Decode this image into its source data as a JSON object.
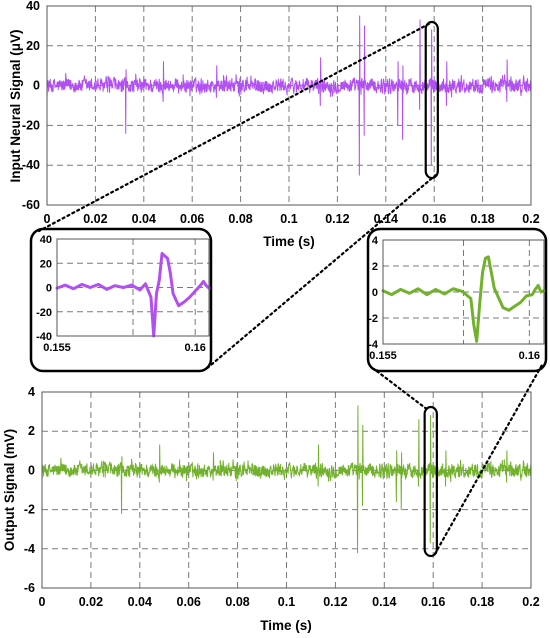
{
  "colors": {
    "input": "#b14ff2",
    "output": "#71b12b"
  },
  "chart_data": [
    {
      "id": "input",
      "type": "line",
      "title": "",
      "xlabel": "Time (s)",
      "ylabel": "Input Neural Signal (μV)",
      "xlim": [
        0,
        0.2
      ],
      "ylim": [
        -60,
        40
      ],
      "xticks": [
        "0",
        "0.02",
        "0.04",
        "0.06",
        "0.08",
        "0.1",
        "0.12",
        "0.14",
        "0.16",
        "0.18",
        "0.2"
      ],
      "yticks": [
        "40",
        "20",
        "0",
        "-20",
        "-40",
        "-60"
      ],
      "grid": true,
      "noise_amplitude": 6,
      "spikes": [
        {
          "t": 0.0326,
          "peak": 8,
          "trough": -24
        },
        {
          "t": 0.048,
          "peak": 12,
          "trough": -8
        },
        {
          "t": 0.07,
          "peak": 10,
          "trough": -6
        },
        {
          "t": 0.113,
          "peak": 14,
          "trough": -10
        },
        {
          "t": 0.129,
          "peak": 35,
          "trough": -45
        },
        {
          "t": 0.131,
          "peak": 30,
          "trough": -25
        },
        {
          "t": 0.145,
          "peak": 12,
          "trough": -20
        },
        {
          "t": 0.147,
          "peak": 10,
          "trough": -27
        },
        {
          "t": 0.154,
          "peak": 33,
          "trough": -12
        },
        {
          "t": 0.1588,
          "peak": 28,
          "trough": -40
        },
        {
          "t": 0.165,
          "peak": 12,
          "trough": -10
        },
        {
          "t": 0.19,
          "peak": 13,
          "trough": -8
        }
      ]
    },
    {
      "id": "input-zoom",
      "type": "line",
      "xlim": [
        0.155,
        0.1605
      ],
      "ylim": [
        -40,
        40
      ],
      "xticks": [
        "0.155",
        "0.16"
      ],
      "yticks": [
        "40",
        "20",
        "0",
        "-20",
        "-40"
      ],
      "grid": true,
      "points": [
        [
          0.155,
          -0.5
        ],
        [
          0.1553,
          2
        ],
        [
          0.1556,
          -1
        ],
        [
          0.1559,
          2.5
        ],
        [
          0.1562,
          0
        ],
        [
          0.1565,
          2.5
        ],
        [
          0.1568,
          -1.5
        ],
        [
          0.1571,
          1.5
        ],
        [
          0.1574,
          0
        ],
        [
          0.1577,
          2
        ],
        [
          0.158,
          -2
        ],
        [
          0.1582,
          3
        ],
        [
          0.1584,
          -8
        ],
        [
          0.1585,
          -40
        ],
        [
          0.1586,
          -5
        ],
        [
          0.1587,
          6
        ],
        [
          0.1588,
          28
        ],
        [
          0.159,
          24
        ],
        [
          0.1591,
          12
        ],
        [
          0.1592,
          -5
        ],
        [
          0.1594,
          -15
        ],
        [
          0.1596,
          -12
        ],
        [
          0.1598,
          -8
        ],
        [
          0.16,
          -3
        ],
        [
          0.1602,
          2
        ],
        [
          0.1603,
          5
        ],
        [
          0.1604,
          1.5
        ],
        [
          0.1605,
          -0.5
        ]
      ]
    },
    {
      "id": "output-zoom",
      "type": "line",
      "xlim": [
        0.155,
        0.1605
      ],
      "ylim": [
        -4,
        4
      ],
      "xticks": [
        "0.155",
        "0.16"
      ],
      "yticks": [
        "4",
        "2",
        "0",
        "-2",
        "-4"
      ],
      "grid": true,
      "points": [
        [
          0.155,
          0.1
        ],
        [
          0.1553,
          -0.2
        ],
        [
          0.1556,
          0.2
        ],
        [
          0.1559,
          -0.1
        ],
        [
          0.1562,
          0.25
        ],
        [
          0.1565,
          -0.2
        ],
        [
          0.1568,
          0.2
        ],
        [
          0.1571,
          -0.15
        ],
        [
          0.1574,
          0.25
        ],
        [
          0.1577,
          0.05
        ],
        [
          0.158,
          -0.5
        ],
        [
          0.1581,
          -2.5
        ],
        [
          0.1582,
          -3.8
        ],
        [
          0.1583,
          -1
        ],
        [
          0.1584,
          1.5
        ],
        [
          0.1585,
          2.6
        ],
        [
          0.1586,
          2.7
        ],
        [
          0.1587,
          1.5
        ],
        [
          0.1588,
          0.3
        ],
        [
          0.159,
          -0.7
        ],
        [
          0.1591,
          -1.2
        ],
        [
          0.1593,
          -1.4
        ],
        [
          0.1595,
          -1.1
        ],
        [
          0.1597,
          -0.8
        ],
        [
          0.1599,
          -0.3
        ],
        [
          0.1601,
          -0.2
        ],
        [
          0.1602,
          0.2
        ],
        [
          0.1603,
          0.5
        ],
        [
          0.1604,
          0
        ],
        [
          0.1605,
          0.1
        ]
      ]
    },
    {
      "id": "output",
      "type": "line",
      "title": "",
      "xlabel": "Time (s)",
      "ylabel": "Output Signal (mV)",
      "xlim": [
        0,
        0.2
      ],
      "ylim": [
        -6,
        4
      ],
      "xticks": [
        "0",
        "0.02",
        "0.04",
        "0.06",
        "0.08",
        "0.1",
        "0.12",
        "0.14",
        "0.16",
        "0.18",
        "0.2"
      ],
      "yticks": [
        "4",
        "2",
        "0",
        "-2",
        "-4",
        "-6"
      ],
      "grid": true,
      "noise_amplitude": 0.6,
      "spikes": [
        {
          "t": 0.0326,
          "peak": 0.7,
          "trough": -2.2
        },
        {
          "t": 0.048,
          "peak": 1.3,
          "trough": -0.6
        },
        {
          "t": 0.07,
          "peak": 0.9,
          "trough": -0.5
        },
        {
          "t": 0.113,
          "peak": 1.3,
          "trough": -0.8
        },
        {
          "t": 0.129,
          "peak": 3.3,
          "trough": -4.2
        },
        {
          "t": 0.131,
          "peak": 2.3,
          "trough": -1.8
        },
        {
          "t": 0.145,
          "peak": 1.0,
          "trough": -1.6
        },
        {
          "t": 0.147,
          "peak": 0.9,
          "trough": -2.0
        },
        {
          "t": 0.154,
          "peak": 2.6,
          "trough": -0.8
        },
        {
          "t": 0.1588,
          "peak": 2.8,
          "trough": -3.7
        },
        {
          "t": 0.165,
          "peak": 1.0,
          "trough": -0.8
        },
        {
          "t": 0.19,
          "peak": 1.0,
          "trough": -0.6
        }
      ]
    }
  ]
}
